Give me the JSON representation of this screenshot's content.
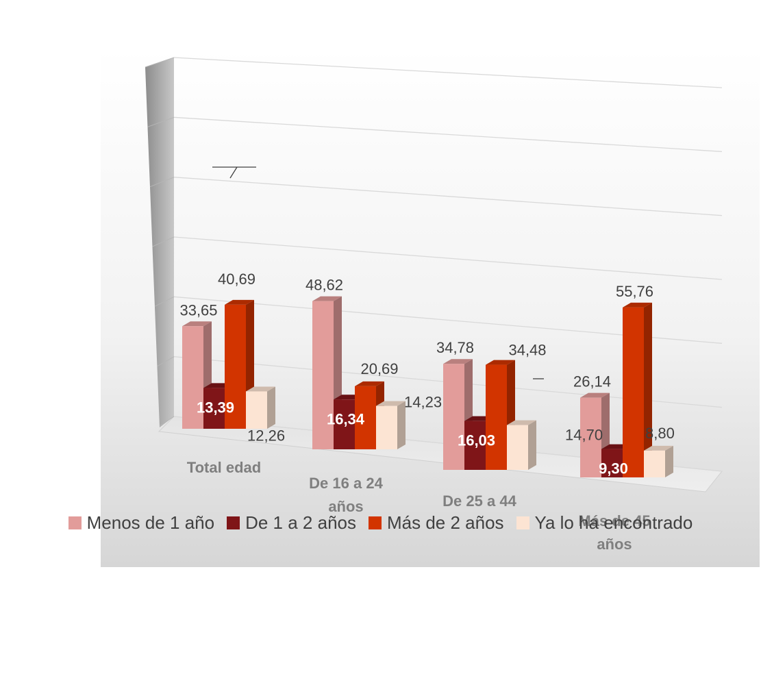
{
  "chart_data": {
    "type": "bar",
    "title": "",
    "xlabel": "",
    "ylabel": "",
    "ylim": [
      0,
      60
    ],
    "grid": true,
    "legend_position": "bottom",
    "categories": [
      "Total edad",
      "De 16 a 24 años",
      "De 25 a 44",
      "Más de 45 años"
    ],
    "series": [
      {
        "name": "Menos de 1 año",
        "color": "#E29C9A",
        "values": [
          33.65,
          48.62,
          34.78,
          26.14
        ],
        "labels": [
          "33,65",
          "48,62",
          "34,78",
          "26,14"
        ]
      },
      {
        "name": "De 1 a 2 años",
        "color": "#7F1518",
        "values": [
          13.39,
          16.34,
          16.03,
          9.3
        ],
        "labels": [
          "13,39",
          "16,34",
          "16,03",
          "9,30"
        ]
      },
      {
        "name": "Más de 2 años",
        "color": "#D23400",
        "values": [
          40.69,
          20.69,
          34.48,
          55.76
        ],
        "labels": [
          "40,69",
          "20,69",
          "34,48",
          "55,76"
        ]
      },
      {
        "name": "Ya lo ha encontrado",
        "color": "#FCE4D3",
        "values": [
          12.26,
          14.23,
          14.7,
          8.8
        ],
        "labels": [
          "12,26",
          "14,23",
          "14,70",
          "8,80"
        ]
      }
    ]
  }
}
